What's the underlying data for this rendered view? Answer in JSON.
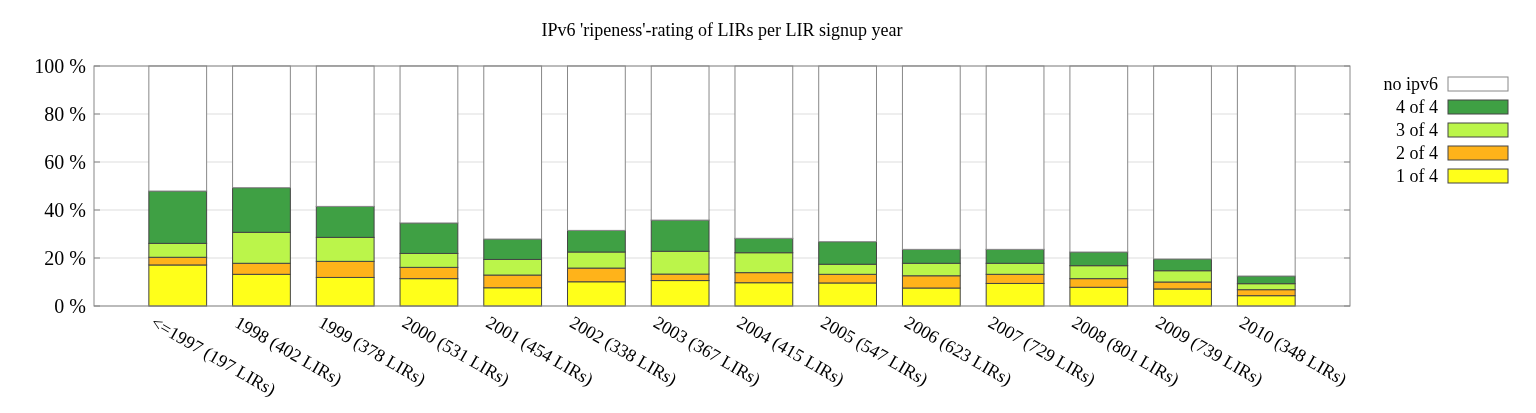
{
  "chart_data": {
    "type": "bar",
    "title": "IPv6 'ripeness'-rating of LIRs per LIR signup year",
    "stacked": true,
    "categories": [
      "<=1997 (197 LIRs)",
      "1998 (402 LIRs)",
      "1999 (378 LIRs)",
      "2000 (531 LIRs)",
      "2001 (454 LIRs)",
      "2002 (338 LIRs)",
      "2003 (367 LIRs)",
      "2004 (415 LIRs)",
      "2005 (547 LIRs)",
      "2006 (623 LIRs)",
      "2007 (729 LIRs)",
      "2008 (801 LIRs)",
      "2009 (739 LIRs)",
      "2010 (348 LIRs)"
    ],
    "series": [
      {
        "name": "1 of 4",
        "color": "#ffff1a",
        "values": [
          17.1,
          13.2,
          11.9,
          11.4,
          7.6,
          10.1,
          10.6,
          9.7,
          9.6,
          7.5,
          9.4,
          7.8,
          7.1,
          4.3
        ]
      },
      {
        "name": "2 of 4",
        "color": "#ffb31a",
        "values": [
          3.2,
          4.6,
          6.7,
          4.7,
          5.3,
          5.7,
          2.7,
          4.2,
          3.6,
          5.1,
          3.8,
          3.6,
          2.9,
          2.5
        ]
      },
      {
        "name": "3 of 4",
        "color": "#bbf54a",
        "values": [
          5.8,
          12.9,
          10.0,
          5.8,
          6.5,
          6.7,
          9.5,
          8.3,
          4.2,
          5.2,
          4.6,
          5.4,
          4.7,
          2.5
        ]
      },
      {
        "name": "4 of 4",
        "color": "#3fa044",
        "values": [
          21.8,
          18.6,
          12.9,
          12.7,
          8.5,
          9.0,
          13.0,
          6.0,
          9.4,
          5.8,
          5.8,
          5.7,
          4.9,
          3.2
        ]
      },
      {
        "name": "no ipv6",
        "color": "#ffffff",
        "values": [
          52.1,
          50.7,
          58.5,
          65.4,
          72.1,
          68.5,
          64.2,
          71.8,
          73.2,
          76.4,
          76.4,
          77.5,
          80.4,
          87.5
        ]
      }
    ],
    "ylim": [
      0,
      100
    ],
    "yticks": [
      {
        "value": 0,
        "label": "0 %"
      },
      {
        "value": 20,
        "label": "20 %"
      },
      {
        "value": 40,
        "label": "40 %"
      },
      {
        "value": 60,
        "label": "60 %"
      },
      {
        "value": 80,
        "label": "80 %"
      },
      {
        "value": 100,
        "label": "100 %"
      }
    ],
    "grid": "y",
    "legend": "right"
  }
}
